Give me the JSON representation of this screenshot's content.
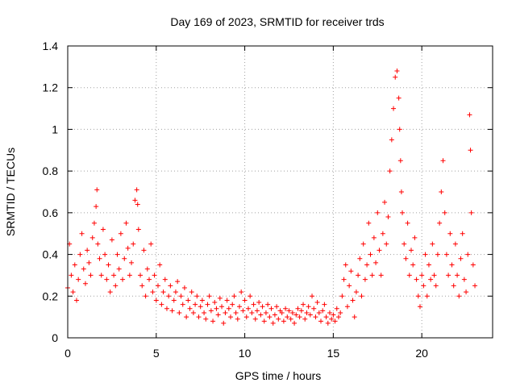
{
  "chart_data": {
    "type": "scatter",
    "title": "Day 169 of 2023, SRMTID for receiver trds",
    "xlabel": "GPS time / hours",
    "ylabel": "SRMTID / TECUs",
    "xlim": [
      0,
      24
    ],
    "ylim": [
      0,
      1.4
    ],
    "xticks": [
      0,
      5,
      10,
      15,
      20
    ],
    "xtick_labels": [
      "0",
      "5",
      "10",
      "15",
      "20"
    ],
    "yticks": [
      0,
      0.2,
      0.4,
      0.6,
      0.8,
      1.0,
      1.2,
      1.4
    ],
    "ytick_labels": [
      "0",
      "0.2",
      "0.4",
      "0.6",
      "0.8",
      "1",
      "1.2",
      "1.4"
    ],
    "grid": true,
    "marker": "+",
    "marker_color": "#ff0000",
    "series": [
      {
        "name": "trds",
        "x": [
          0.0,
          0.1,
          0.2,
          0.3,
          0.4,
          0.5,
          0.6,
          0.7,
          0.8,
          0.9,
          1.0,
          1.1,
          1.2,
          1.3,
          1.4,
          1.5,
          1.6,
          1.65,
          1.7,
          1.8,
          1.9,
          2.0,
          2.1,
          2.2,
          2.3,
          2.4,
          2.5,
          2.6,
          2.7,
          2.8,
          2.9,
          3.0,
          3.1,
          3.2,
          3.3,
          3.4,
          3.5,
          3.6,
          3.7,
          3.8,
          3.9,
          3.95,
          4.0,
          4.1,
          4.2,
          4.3,
          4.4,
          4.5,
          4.6,
          4.7,
          4.8,
          4.9,
          5.0,
          5.1,
          5.2,
          5.3,
          5.4,
          5.5,
          5.6,
          5.7,
          5.8,
          5.9,
          6.0,
          6.1,
          6.2,
          6.3,
          6.4,
          6.5,
          6.6,
          6.7,
          6.8,
          6.9,
          7.0,
          7.1,
          7.2,
          7.3,
          7.4,
          7.5,
          7.6,
          7.7,
          7.8,
          7.9,
          8.0,
          8.1,
          8.2,
          8.3,
          8.4,
          8.5,
          8.6,
          8.7,
          8.8,
          8.9,
          9.0,
          9.1,
          9.2,
          9.3,
          9.4,
          9.5,
          9.6,
          9.7,
          9.8,
          9.9,
          10.0,
          10.1,
          10.2,
          10.3,
          10.4,
          10.5,
          10.6,
          10.7,
          10.8,
          10.9,
          11.0,
          11.1,
          11.2,
          11.3,
          11.4,
          11.5,
          11.6,
          11.7,
          11.8,
          11.9,
          12.0,
          12.1,
          12.2,
          12.3,
          12.4,
          12.5,
          12.6,
          12.7,
          12.8,
          12.9,
          13.0,
          13.1,
          13.2,
          13.3,
          13.4,
          13.5,
          13.6,
          13.7,
          13.8,
          13.9,
          14.0,
          14.1,
          14.2,
          14.3,
          14.4,
          14.5,
          14.6,
          14.7,
          14.8,
          14.9,
          15.0,
          15.1,
          15.2,
          15.3,
          15.4,
          15.5,
          15.6,
          15.7,
          15.8,
          15.9,
          16.0,
          16.1,
          16.2,
          16.3,
          16.4,
          16.5,
          16.6,
          16.7,
          16.8,
          16.9,
          17.0,
          17.1,
          17.2,
          17.3,
          17.4,
          17.5,
          17.6,
          17.7,
          17.8,
          17.9,
          18.0,
          18.1,
          18.2,
          18.3,
          18.4,
          18.5,
          18.6,
          18.7,
          18.75,
          18.8,
          18.85,
          18.9,
          19.0,
          19.1,
          19.2,
          19.3,
          19.4,
          19.5,
          19.6,
          19.7,
          19.8,
          19.9,
          20.0,
          20.1,
          20.2,
          20.3,
          20.4,
          20.5,
          20.6,
          20.7,
          20.8,
          20.9,
          21.0,
          21.1,
          21.2,
          21.3,
          21.4,
          21.5,
          21.6,
          21.7,
          21.8,
          21.9,
          22.0,
          22.1,
          22.2,
          22.3,
          22.4,
          22.5,
          22.6,
          22.7,
          22.75,
          22.8,
          22.9,
          23.0
        ],
        "y": [
          0.24,
          0.45,
          0.3,
          0.22,
          0.35,
          0.18,
          0.28,
          0.4,
          0.5,
          0.33,
          0.26,
          0.42,
          0.36,
          0.3,
          0.48,
          0.55,
          0.63,
          0.71,
          0.45,
          0.38,
          0.3,
          0.52,
          0.4,
          0.28,
          0.35,
          0.22,
          0.47,
          0.3,
          0.25,
          0.4,
          0.33,
          0.5,
          0.28,
          0.38,
          0.55,
          0.43,
          0.3,
          0.36,
          0.45,
          0.66,
          0.71,
          0.64,
          0.52,
          0.3,
          0.25,
          0.42,
          0.2,
          0.33,
          0.28,
          0.45,
          0.22,
          0.3,
          0.18,
          0.25,
          0.35,
          0.16,
          0.22,
          0.28,
          0.14,
          0.2,
          0.25,
          0.13,
          0.18,
          0.22,
          0.27,
          0.12,
          0.2,
          0.16,
          0.24,
          0.1,
          0.18,
          0.14,
          0.22,
          0.12,
          0.16,
          0.2,
          0.1,
          0.15,
          0.18,
          0.12,
          0.09,
          0.16,
          0.2,
          0.13,
          0.08,
          0.17,
          0.14,
          0.11,
          0.19,
          0.15,
          0.07,
          0.12,
          0.18,
          0.14,
          0.1,
          0.16,
          0.2,
          0.12,
          0.09,
          0.15,
          0.22,
          0.13,
          0.18,
          0.1,
          0.14,
          0.2,
          0.12,
          0.16,
          0.09,
          0.13,
          0.17,
          0.11,
          0.15,
          0.08,
          0.12,
          0.16,
          0.1,
          0.14,
          0.07,
          0.11,
          0.15,
          0.09,
          0.13,
          0.12,
          0.08,
          0.14,
          0.1,
          0.13,
          0.09,
          0.12,
          0.07,
          0.11,
          0.14,
          0.1,
          0.13,
          0.16,
          0.09,
          0.12,
          0.15,
          0.11,
          0.2,
          0.14,
          0.1,
          0.17,
          0.12,
          0.08,
          0.13,
          0.16,
          0.1,
          0.07,
          0.12,
          0.09,
          0.11,
          0.08,
          0.14,
          0.1,
          0.12,
          0.2,
          0.28,
          0.35,
          0.15,
          0.25,
          0.32,
          0.18,
          0.1,
          0.22,
          0.3,
          0.38,
          0.2,
          0.45,
          0.28,
          0.35,
          0.55,
          0.4,
          0.3,
          0.48,
          0.36,
          0.6,
          0.42,
          0.3,
          0.5,
          0.65,
          0.45,
          0.58,
          0.8,
          0.95,
          1.1,
          1.25,
          1.28,
          1.15,
          1.0,
          0.85,
          0.7,
          0.6,
          0.45,
          0.38,
          0.55,
          0.3,
          0.42,
          0.35,
          0.48,
          0.28,
          0.2,
          0.15,
          0.3,
          0.25,
          0.4,
          0.2,
          0.35,
          0.28,
          0.45,
          0.3,
          0.25,
          0.4,
          0.55,
          0.7,
          0.85,
          0.6,
          0.4,
          0.3,
          0.5,
          0.35,
          0.25,
          0.45,
          0.3,
          0.2,
          0.38,
          0.5,
          0.28,
          0.22,
          0.4,
          1.07,
          0.9,
          0.6,
          0.35,
          0.25
        ]
      }
    ]
  }
}
